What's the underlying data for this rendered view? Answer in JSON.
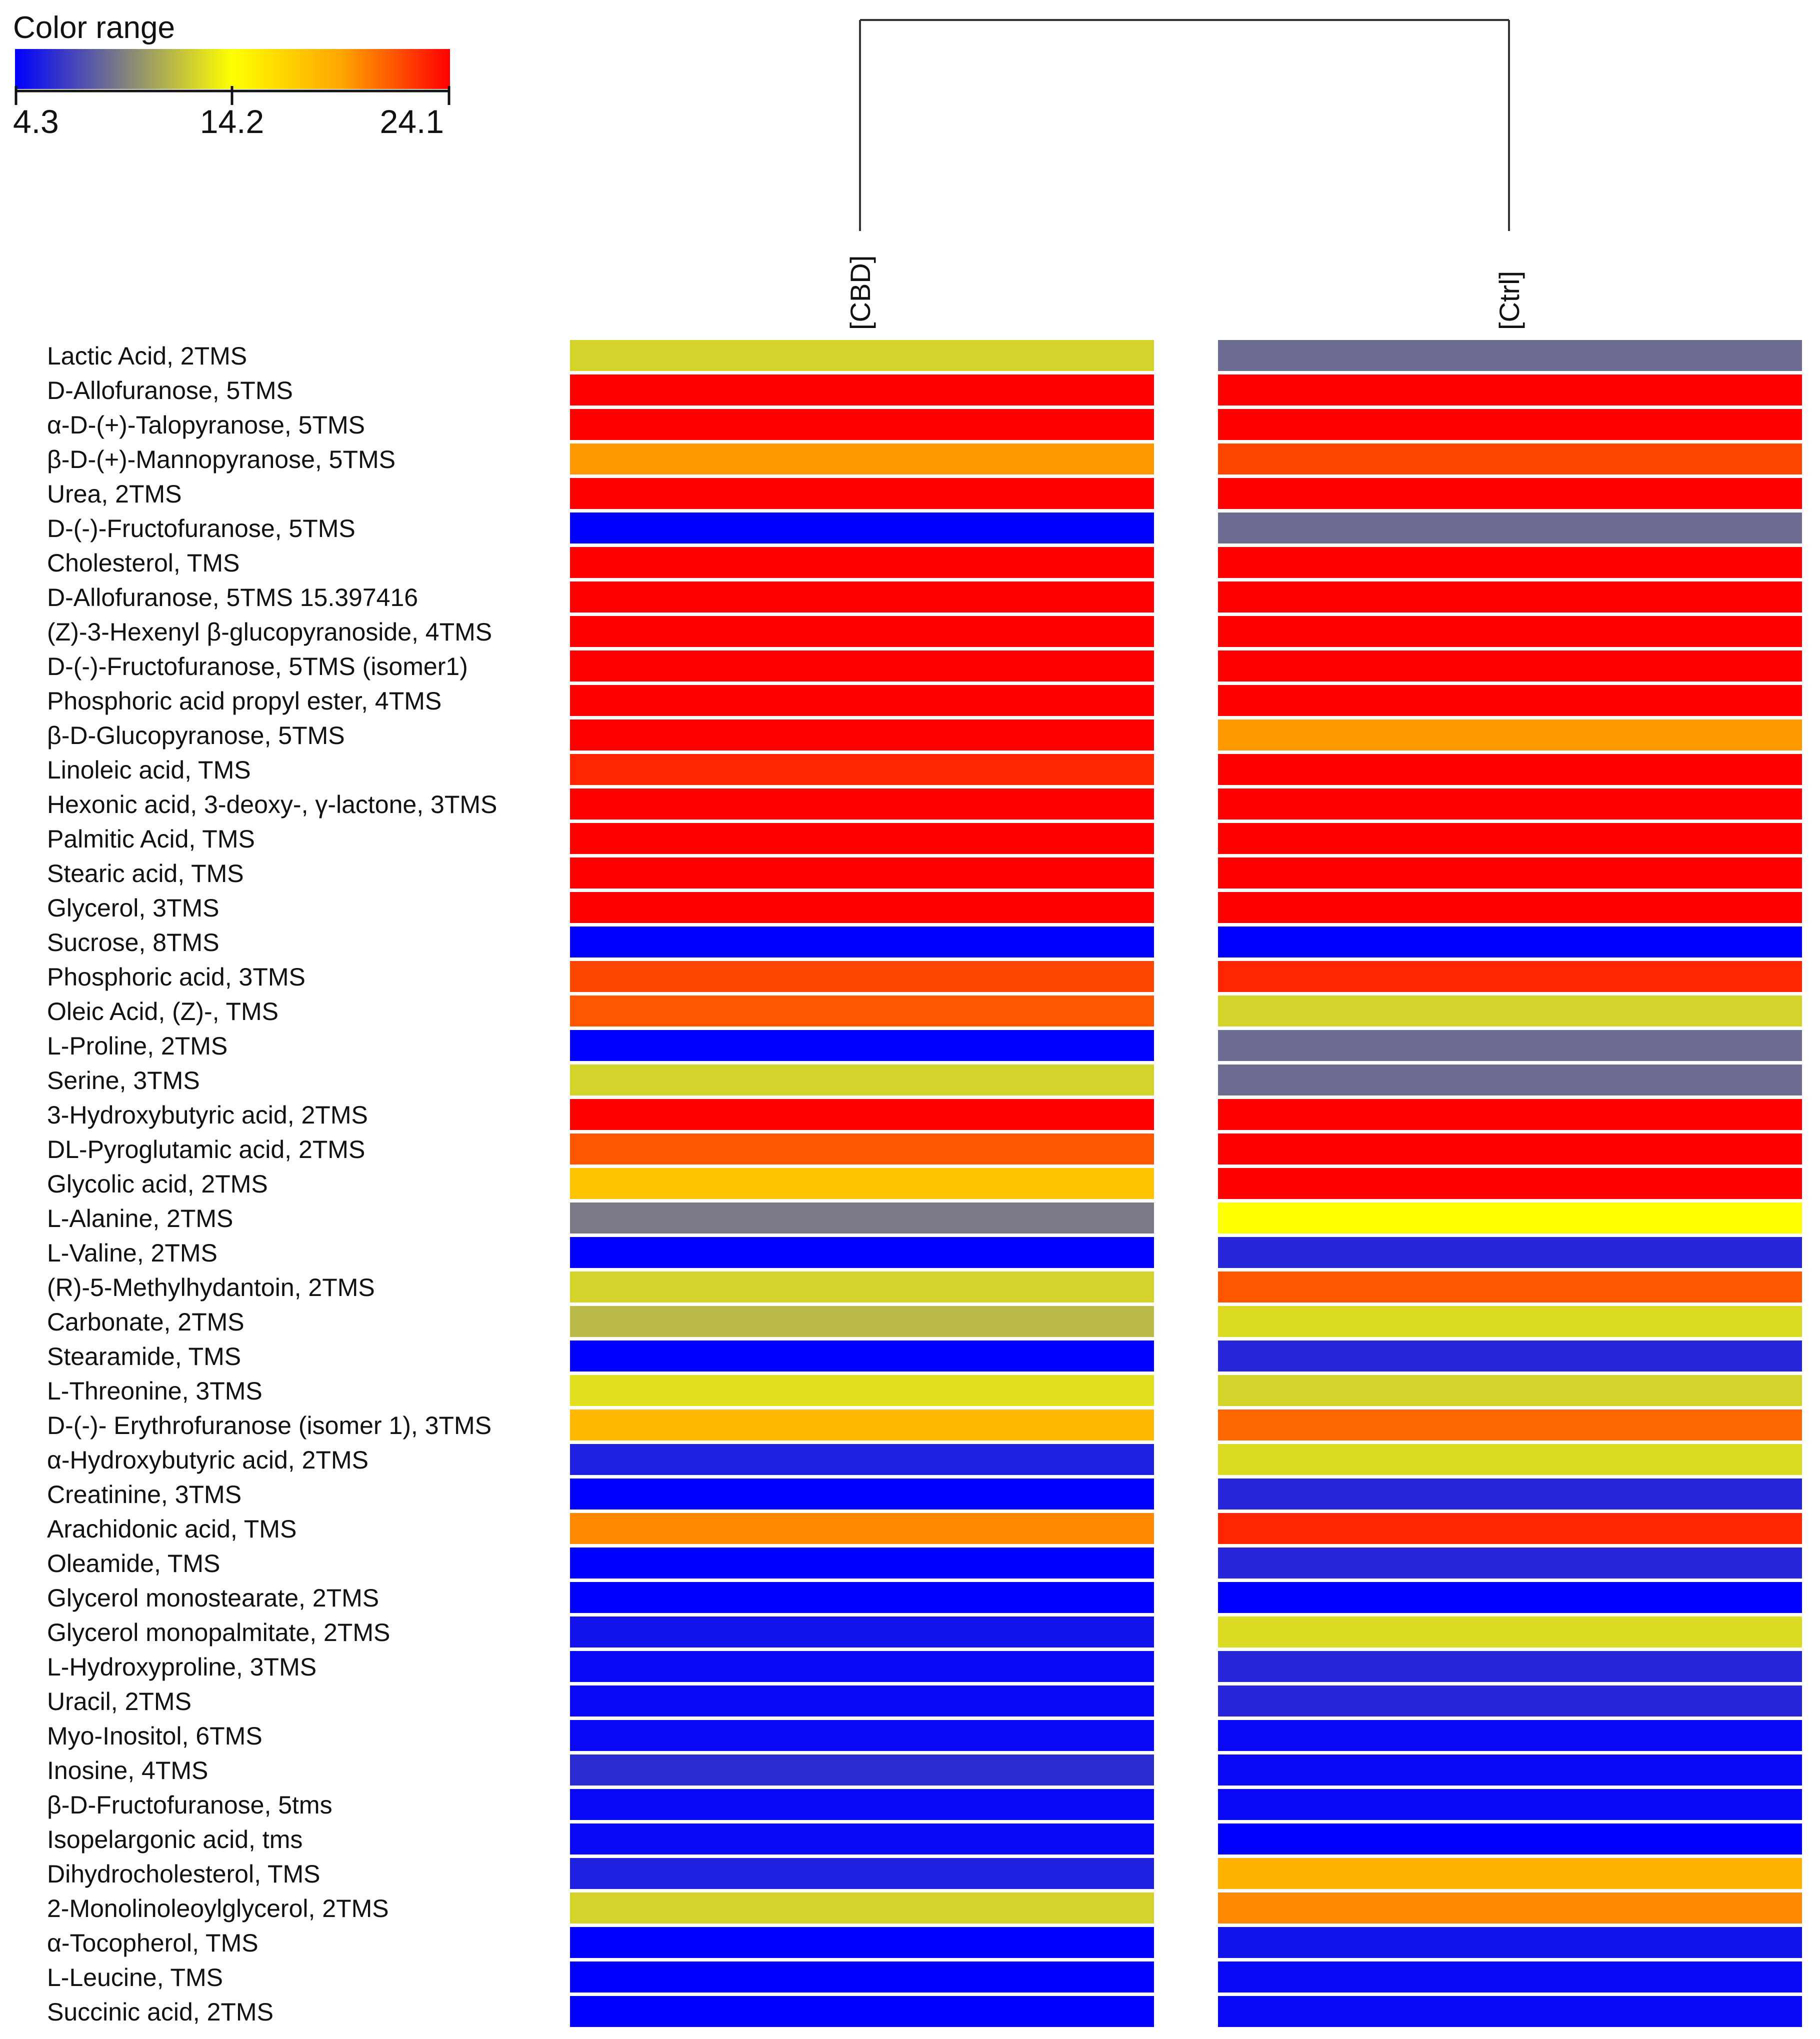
{
  "chart_data": {
    "type": "heatmap",
    "title": "",
    "color_range": {
      "label": "Color range",
      "ticks": [
        "4.3",
        "14.2",
        "24.1"
      ],
      "min": 4.3,
      "max": 24.1,
      "colors": [
        "#0000ff",
        "#808080",
        "#ffff00",
        "#ffa500",
        "#ff0000"
      ]
    },
    "columns": [
      "[CBD]",
      "[Ctrl]"
    ],
    "dendrogram": "CBD and Ctrl joined in one cluster",
    "rows": [
      {
        "label": "Lactic Acid, 2TMS",
        "values": [
          12.5,
          8.5
        ]
      },
      {
        "label": "D-Allofuranose, 5TMS",
        "values": [
          24.1,
          24.1
        ]
      },
      {
        "label": "α-D-(+)-Talopyranose, 5TMS",
        "values": [
          24.1,
          24.1
        ]
      },
      {
        "label": "β-D-(+)-Mannopyranose, 5TMS",
        "values": [
          19.5,
          22.0
        ]
      },
      {
        "label": "Urea, 2TMS",
        "values": [
          24.1,
          24.1
        ]
      },
      {
        "label": "D-(-)-Fructofuranose, 5TMS",
        "values": [
          4.3,
          8.5
        ]
      },
      {
        "label": "Cholesterol, TMS",
        "values": [
          24.1,
          24.1
        ]
      },
      {
        "label": "D-Allofuranose, 5TMS 15.397416",
        "values": [
          24.1,
          24.1
        ]
      },
      {
        "label": "(Z)-3-Hexenyl β-glucopyranoside, 4TMS",
        "values": [
          24.1,
          24.1
        ]
      },
      {
        "label": "D-(-)-Fructofuranose, 5TMS (isomer1)",
        "values": [
          24.1,
          24.1
        ]
      },
      {
        "label": "Phosphoric acid propyl ester, 4TMS",
        "values": [
          24.1,
          24.1
        ]
      },
      {
        "label": "β-D-Glucopyranose, 5TMS",
        "values": [
          24.1,
          19.5
        ]
      },
      {
        "label": "Linoleic acid, TMS",
        "values": [
          23.0,
          24.1
        ]
      },
      {
        "label": "Hexonic acid, 3-deoxy-, γ-lactone, 3TMS",
        "values": [
          24.1,
          24.1
        ]
      },
      {
        "label": "Palmitic Acid, TMS",
        "values": [
          24.1,
          24.1
        ]
      },
      {
        "label": "Stearic acid, TMS",
        "values": [
          24.1,
          24.1
        ]
      },
      {
        "label": "Glycerol, 3TMS",
        "values": [
          24.1,
          24.1
        ]
      },
      {
        "label": "Sucrose, 8TMS",
        "values": [
          4.3,
          4.3
        ]
      },
      {
        "label": "Phosphoric acid, 3TMS",
        "values": [
          22.0,
          23.0
        ]
      },
      {
        "label": "Oleic Acid, (Z)-, TMS",
        "values": [
          21.5,
          12.5
        ]
      },
      {
        "label": "L-Proline, 2TMS",
        "values": [
          4.3,
          8.5
        ]
      },
      {
        "label": "Serine, 3TMS",
        "values": [
          12.5,
          8.5
        ]
      },
      {
        "label": "3-Hydroxybutyric acid, 2TMS",
        "values": [
          24.1,
          24.1
        ]
      },
      {
        "label": "DL-Pyroglutamic acid, 2TMS",
        "values": [
          21.5,
          24.1
        ]
      },
      {
        "label": "Glycolic acid, 2TMS",
        "values": [
          17.5,
          24.1
        ]
      },
      {
        "label": "L-Alanine, 2TMS",
        "values": [
          9.0,
          14.2
        ]
      },
      {
        "label": "L-Valine, 2TMS",
        "values": [
          4.3,
          5.8
        ]
      },
      {
        "label": "(R)-5-Methylhydantoin, 2TMS",
        "values": [
          12.5,
          21.5
        ]
      },
      {
        "label": "Carbonate, 2TMS",
        "values": [
          11.5,
          12.8
        ]
      },
      {
        "label": "Stearamide, TMS",
        "values": [
          4.3,
          5.8
        ]
      },
      {
        "label": "L-Threonine, 3TMS",
        "values": [
          13.0,
          12.5
        ]
      },
      {
        "label": "D-(-)- Erythrofuranose (isomer 1), 3TMS",
        "values": [
          18.0,
          21.0
        ]
      },
      {
        "label": "α-Hydroxybutyric acid, 2TMS",
        "values": [
          5.5,
          12.8
        ]
      },
      {
        "label": "Creatinine, 3TMS",
        "values": [
          4.3,
          5.8
        ]
      },
      {
        "label": "Arachidonic acid, TMS",
        "values": [
          20.0,
          23.0
        ]
      },
      {
        "label": "Oleamide, TMS",
        "values": [
          4.3,
          5.8
        ]
      },
      {
        "label": "Glycerol monostearate, 2TMS",
        "values": [
          4.3,
          4.3
        ]
      },
      {
        "label": "Glycerol monopalmitate, 2TMS",
        "values": [
          5.0,
          12.8
        ]
      },
      {
        "label": "L-Hydroxyproline,  3TMS",
        "values": [
          4.6,
          5.8
        ]
      },
      {
        "label": "Uracil, 2TMS",
        "values": [
          4.6,
          5.8
        ]
      },
      {
        "label": "Myo-Inositol, 6TMS",
        "values": [
          4.6,
          4.6
        ]
      },
      {
        "label": "Inosine, 4TMS",
        "values": [
          6.0,
          4.6
        ]
      },
      {
        "label": "β-D-Fructofuranose, 5tms",
        "values": [
          4.6,
          4.6
        ]
      },
      {
        "label": "Isopelargonic acid, tms",
        "values": [
          4.6,
          4.3
        ]
      },
      {
        "label": "Dihydrocholesterol, TMS",
        "values": [
          5.5,
          18.5
        ]
      },
      {
        "label": "2-Monolinoleoylglycerol, 2TMS",
        "values": [
          12.5,
          20.0
        ]
      },
      {
        "label": "α-Tocopherol, TMS",
        "values": [
          4.3,
          5.0
        ]
      },
      {
        "label": "L-Leucine, TMS",
        "values": [
          4.3,
          4.6
        ]
      },
      {
        "label": "Succinic acid, 2TMS",
        "values": [
          4.3,
          4.6
        ]
      }
    ]
  }
}
